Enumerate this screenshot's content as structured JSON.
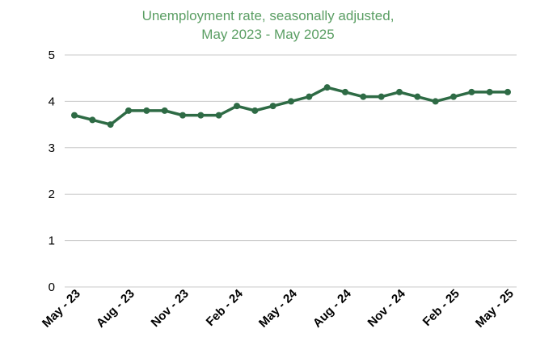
{
  "chart_data": {
    "type": "line",
    "title_lines": [
      "Unemployment rate, seasonally adjusted,",
      "May 2023 - May 2025"
    ],
    "xlabel": "",
    "ylabel": "",
    "ylim": [
      0,
      5
    ],
    "yticks": [
      "0",
      "1",
      "2",
      "3",
      "4",
      "5"
    ],
    "grid": true,
    "x": [
      "May 2023",
      "Jun 2023",
      "Jul 2023",
      "Aug 2023",
      "Sep 2023",
      "Oct 2023",
      "Nov 2023",
      "Dec 2023",
      "Jan 2024",
      "Feb 2024",
      "Mar 2024",
      "Apr 2024",
      "May 2024",
      "Jun 2024",
      "Jul 2024",
      "Aug 2024",
      "Sep 2024",
      "Oct 2024",
      "Nov 2024",
      "Dec 2024",
      "Jan 2025",
      "Feb 2025",
      "Mar 2025",
      "Apr 2025",
      "May 2025"
    ],
    "xtick_labels": [
      "May - 23",
      "Aug - 23",
      "Nov - 23",
      "Feb - 24",
      "May - 24",
      "Aug - 24",
      "Nov - 24",
      "Feb - 25",
      "May - 25"
    ],
    "xtick_every": 3,
    "series": [
      {
        "values": [
          3.7,
          3.6,
          3.5,
          3.8,
          3.8,
          3.8,
          3.7,
          3.7,
          3.7,
          3.9,
          3.8,
          3.9,
          4.0,
          4.1,
          4.3,
          4.2,
          4.1,
          4.1,
          4.2,
          4.1,
          4.0,
          4.1,
          4.2,
          4.2,
          4.2
        ],
        "color": "#2e6b45"
      }
    ],
    "colors": {
      "title": "#5a9e63",
      "line": "#2e6b45",
      "grid": "#c8c8c8",
      "text": "#000000"
    }
  }
}
